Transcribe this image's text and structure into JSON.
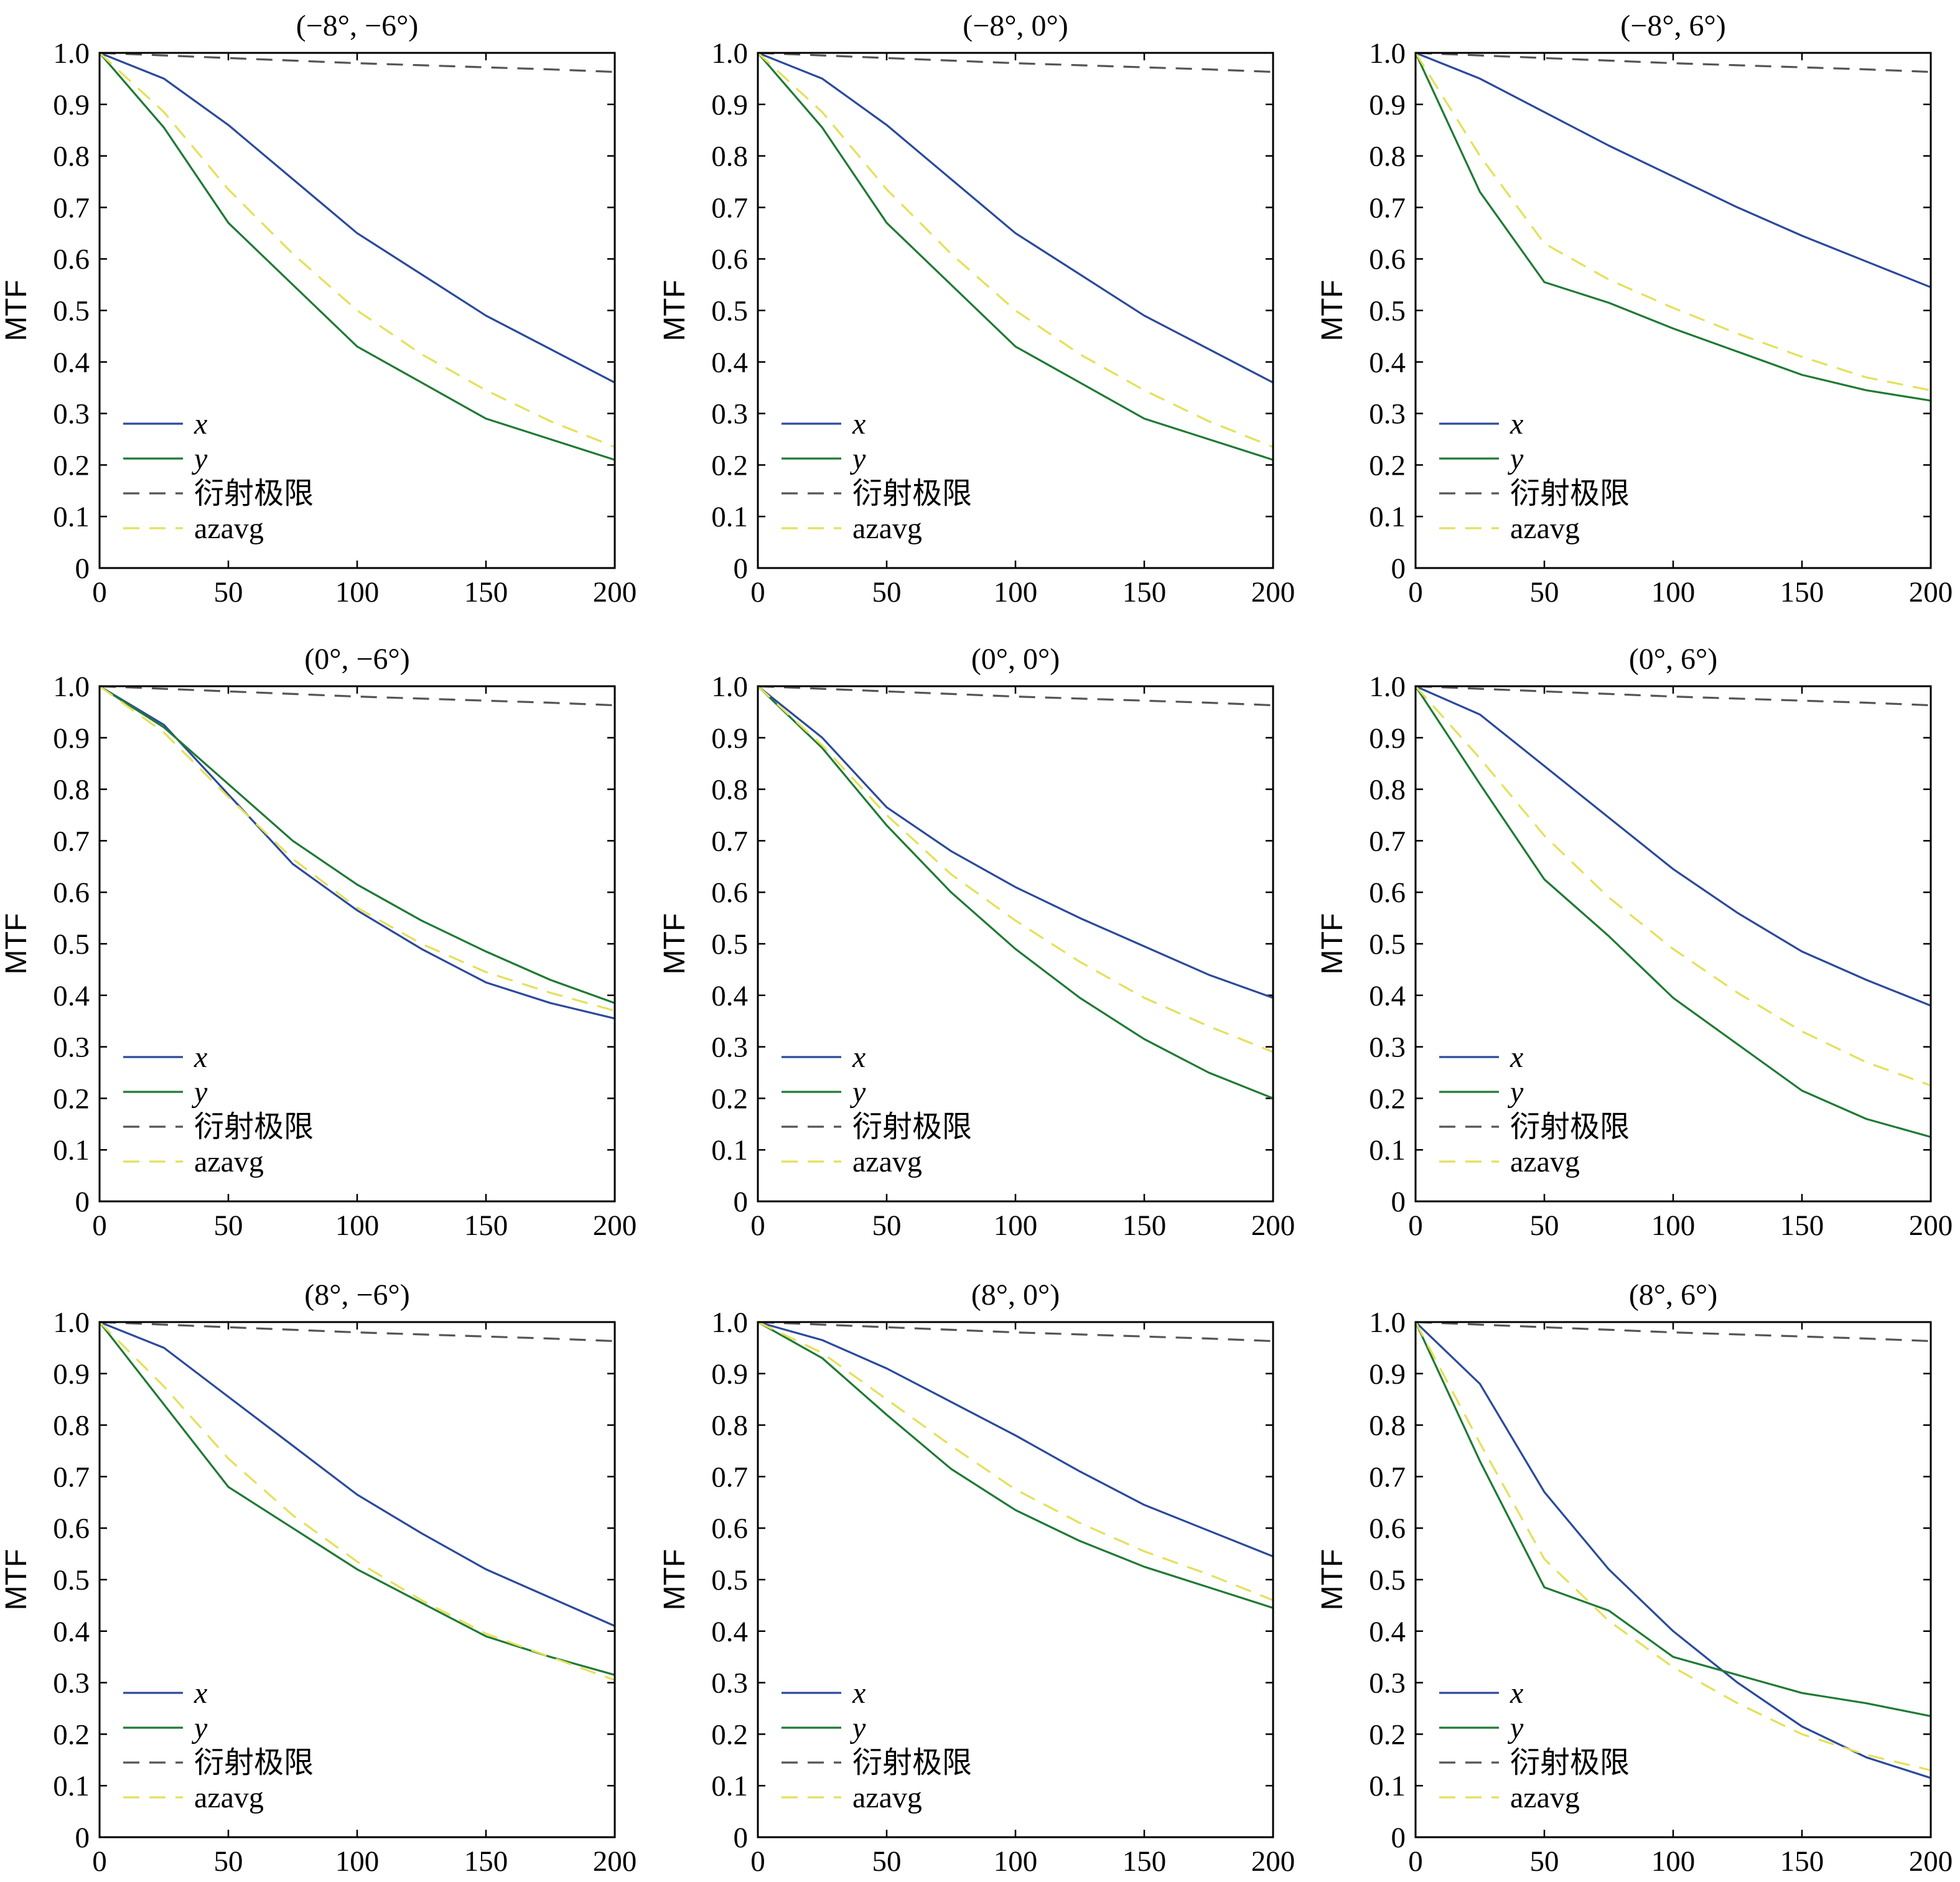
{
  "chart_data": [
    {
      "type": "line",
      "title": "(−8°, −6°)",
      "xlabel": "",
      "ylabel": "MTF",
      "xlim": [
        0,
        200
      ],
      "ylim": [
        0,
        1
      ],
      "x": [
        0,
        25,
        50,
        75,
        100,
        125,
        150,
        175,
        200
      ],
      "xticks": [
        "0",
        "50",
        "100",
        "150",
        "200"
      ],
      "yticks": [
        "0",
        "0.1",
        "0.2",
        "0.3",
        "0.4",
        "0.5",
        "0.6",
        "0.7",
        "0.8",
        "0.9",
        "1.0"
      ],
      "legend": {
        "position": "lower-left"
      },
      "series": [
        {
          "name": "x",
          "color": "#2b4a9b",
          "dash": "solid",
          "values": [
            1.0,
            0.95,
            0.86,
            0.755,
            0.65,
            0.57,
            0.49,
            0.425,
            0.36
          ]
        },
        {
          "name": "y",
          "color": "#1f7a34",
          "dash": "solid",
          "values": [
            1.0,
            0.855,
            0.67,
            0.55,
            0.43,
            0.36,
            0.29,
            0.25,
            0.21
          ]
        },
        {
          "name": "衍射极限",
          "color": "#555555",
          "dash": "dashed",
          "values": [
            1.0,
            0.995,
            0.99,
            0.985,
            0.98,
            0.976,
            0.972,
            0.968,
            0.963
          ]
        },
        {
          "name": "azavg",
          "color": "#e4e05a",
          "dash": "dashed",
          "values": [
            1.0,
            0.885,
            0.735,
            0.61,
            0.5,
            0.415,
            0.345,
            0.285,
            0.235
          ]
        }
      ]
    },
    {
      "type": "line",
      "title": "(−8°, 0°)",
      "xlabel": "",
      "ylabel": "MTF",
      "xlim": [
        0,
        200
      ],
      "ylim": [
        0,
        1
      ],
      "x": [
        0,
        25,
        50,
        75,
        100,
        125,
        150,
        175,
        200
      ],
      "xticks": [
        "0",
        "50",
        "100",
        "150",
        "200"
      ],
      "yticks": [
        "0",
        "0.1",
        "0.2",
        "0.3",
        "0.4",
        "0.5",
        "0.6",
        "0.7",
        "0.8",
        "0.9",
        "1.0"
      ],
      "legend": {
        "position": "lower-left"
      },
      "series": [
        {
          "name": "x",
          "color": "#2b4a9b",
          "dash": "solid",
          "values": [
            1.0,
            0.95,
            0.86,
            0.755,
            0.65,
            0.57,
            0.49,
            0.425,
            0.36
          ]
        },
        {
          "name": "y",
          "color": "#1f7a34",
          "dash": "solid",
          "values": [
            1.0,
            0.855,
            0.67,
            0.55,
            0.43,
            0.36,
            0.29,
            0.25,
            0.21
          ]
        },
        {
          "name": "衍射极限",
          "color": "#555555",
          "dash": "dashed",
          "values": [
            1.0,
            0.995,
            0.99,
            0.985,
            0.98,
            0.976,
            0.972,
            0.968,
            0.963
          ]
        },
        {
          "name": "azavg",
          "color": "#e4e05a",
          "dash": "dashed",
          "values": [
            1.0,
            0.885,
            0.735,
            0.61,
            0.5,
            0.415,
            0.345,
            0.285,
            0.235
          ]
        }
      ]
    },
    {
      "type": "line",
      "title": "(−8°, 6°)",
      "xlabel": "",
      "ylabel": "MTF",
      "xlim": [
        0,
        200
      ],
      "ylim": [
        0,
        1
      ],
      "x": [
        0,
        25,
        50,
        75,
        100,
        125,
        150,
        175,
        200
      ],
      "xticks": [
        "0",
        "50",
        "100",
        "150",
        "200"
      ],
      "yticks": [
        "0",
        "0.1",
        "0.2",
        "0.3",
        "0.4",
        "0.5",
        "0.6",
        "0.7",
        "0.8",
        "0.9",
        "1.0"
      ],
      "legend": {
        "position": "lower-left"
      },
      "series": [
        {
          "name": "x",
          "color": "#2b4a9b",
          "dash": "solid",
          "values": [
            1.0,
            0.95,
            0.885,
            0.82,
            0.76,
            0.7,
            0.645,
            0.595,
            0.545
          ]
        },
        {
          "name": "y",
          "color": "#1f7a34",
          "dash": "solid",
          "values": [
            1.0,
            0.73,
            0.555,
            0.515,
            0.465,
            0.42,
            0.375,
            0.345,
            0.325
          ]
        },
        {
          "name": "衍射极限",
          "color": "#555555",
          "dash": "dashed",
          "values": [
            1.0,
            0.995,
            0.99,
            0.985,
            0.98,
            0.976,
            0.972,
            0.968,
            0.963
          ]
        },
        {
          "name": "azavg",
          "color": "#e4e05a",
          "dash": "dashed",
          "values": [
            1.0,
            0.8,
            0.63,
            0.56,
            0.505,
            0.455,
            0.41,
            0.37,
            0.345
          ]
        }
      ]
    },
    {
      "type": "line",
      "title": "(0°, −6°)",
      "xlabel": "",
      "ylabel": "MTF",
      "xlim": [
        0,
        200
      ],
      "ylim": [
        0,
        1
      ],
      "x": [
        0,
        25,
        50,
        75,
        100,
        125,
        150,
        175,
        200
      ],
      "xticks": [
        "0",
        "50",
        "100",
        "150",
        "200"
      ],
      "yticks": [
        "0",
        "0.1",
        "0.2",
        "0.3",
        "0.4",
        "0.5",
        "0.6",
        "0.7",
        "0.8",
        "0.9",
        "1.0"
      ],
      "legend": {
        "position": "lower-left"
      },
      "series": [
        {
          "name": "x",
          "color": "#2b4a9b",
          "dash": "solid",
          "values": [
            1.0,
            0.925,
            0.79,
            0.655,
            0.565,
            0.49,
            0.425,
            0.385,
            0.355
          ]
        },
        {
          "name": "y",
          "color": "#1f7a34",
          "dash": "solid",
          "values": [
            1.0,
            0.92,
            0.81,
            0.7,
            0.615,
            0.545,
            0.485,
            0.43,
            0.385
          ]
        },
        {
          "name": "衍射极限",
          "color": "#555555",
          "dash": "dashed",
          "values": [
            1.0,
            0.995,
            0.99,
            0.985,
            0.98,
            0.976,
            0.972,
            0.968,
            0.963
          ]
        },
        {
          "name": "azavg",
          "color": "#e4e05a",
          "dash": "dashed",
          "values": [
            1.0,
            0.91,
            0.785,
            0.665,
            0.57,
            0.5,
            0.445,
            0.405,
            0.37
          ]
        }
      ]
    },
    {
      "type": "line",
      "title": "(0°, 0°)",
      "xlabel": "",
      "ylabel": "MTF",
      "xlim": [
        0,
        200
      ],
      "ylim": [
        0,
        1
      ],
      "x": [
        0,
        25,
        50,
        75,
        100,
        125,
        150,
        175,
        200
      ],
      "xticks": [
        "0",
        "50",
        "100",
        "150",
        "200"
      ],
      "yticks": [
        "0",
        "0.1",
        "0.2",
        "0.3",
        "0.4",
        "0.5",
        "0.6",
        "0.7",
        "0.8",
        "0.9",
        "1.0"
      ],
      "legend": {
        "position": "lower-left"
      },
      "series": [
        {
          "name": "x",
          "color": "#2b4a9b",
          "dash": "solid",
          "values": [
            1.0,
            0.9,
            0.765,
            0.68,
            0.61,
            0.55,
            0.495,
            0.44,
            0.395
          ]
        },
        {
          "name": "y",
          "color": "#1f7a34",
          "dash": "solid",
          "values": [
            1.0,
            0.88,
            0.73,
            0.6,
            0.49,
            0.395,
            0.315,
            0.25,
            0.2
          ]
        },
        {
          "name": "衍射极限",
          "color": "#555555",
          "dash": "dashed",
          "values": [
            1.0,
            0.995,
            0.99,
            0.985,
            0.98,
            0.976,
            0.972,
            0.968,
            0.963
          ]
        },
        {
          "name": "azavg",
          "color": "#e4e05a",
          "dash": "dashed",
          "values": [
            1.0,
            0.885,
            0.75,
            0.635,
            0.545,
            0.465,
            0.395,
            0.34,
            0.29
          ]
        }
      ]
    },
    {
      "type": "line",
      "title": "(0°, 6°)",
      "xlabel": "",
      "ylabel": "MTF",
      "xlim": [
        0,
        200
      ],
      "ylim": [
        0,
        1
      ],
      "x": [
        0,
        25,
        50,
        75,
        100,
        125,
        150,
        175,
        200
      ],
      "xticks": [
        "0",
        "50",
        "100",
        "150",
        "200"
      ],
      "yticks": [
        "0",
        "0.1",
        "0.2",
        "0.3",
        "0.4",
        "0.5",
        "0.6",
        "0.7",
        "0.8",
        "0.9",
        "1.0"
      ],
      "legend": {
        "position": "lower-left"
      },
      "series": [
        {
          "name": "x",
          "color": "#2b4a9b",
          "dash": "solid",
          "values": [
            1.0,
            0.945,
            0.845,
            0.745,
            0.645,
            0.56,
            0.485,
            0.43,
            0.38
          ]
        },
        {
          "name": "y",
          "color": "#1f7a34",
          "dash": "solid",
          "values": [
            1.0,
            0.81,
            0.625,
            0.515,
            0.395,
            0.305,
            0.215,
            0.16,
            0.125
          ]
        },
        {
          "name": "衍射极限",
          "color": "#555555",
          "dash": "dashed",
          "values": [
            1.0,
            0.995,
            0.99,
            0.985,
            0.98,
            0.976,
            0.972,
            0.968,
            0.963
          ]
        },
        {
          "name": "azavg",
          "color": "#e4e05a",
          "dash": "dashed",
          "values": [
            1.0,
            0.86,
            0.71,
            0.59,
            0.49,
            0.405,
            0.33,
            0.27,
            0.225
          ]
        }
      ]
    },
    {
      "type": "line",
      "title": "(8°, −6°)",
      "xlabel": "",
      "ylabel": "MTF",
      "xlim": [
        0,
        200
      ],
      "ylim": [
        0,
        1
      ],
      "x": [
        0,
        25,
        50,
        75,
        100,
        125,
        150,
        175,
        200
      ],
      "xticks": [
        "0",
        "50",
        "100",
        "150",
        "200"
      ],
      "yticks": [
        "0",
        "0.1",
        "0.2",
        "0.3",
        "0.4",
        "0.5",
        "0.6",
        "0.7",
        "0.8",
        "0.9",
        "1.0"
      ],
      "legend": {
        "position": "lower-left"
      },
      "series": [
        {
          "name": "x",
          "color": "#2b4a9b",
          "dash": "solid",
          "values": [
            1.0,
            0.95,
            0.855,
            0.76,
            0.665,
            0.59,
            0.52,
            0.465,
            0.41
          ]
        },
        {
          "name": "y",
          "color": "#1f7a34",
          "dash": "solid",
          "values": [
            1.0,
            0.84,
            0.68,
            0.6,
            0.52,
            0.455,
            0.39,
            0.35,
            0.315
          ]
        },
        {
          "name": "衍射极限",
          "color": "#555555",
          "dash": "dashed",
          "values": [
            1.0,
            0.995,
            0.99,
            0.985,
            0.98,
            0.976,
            0.972,
            0.968,
            0.963
          ]
        },
        {
          "name": "azavg",
          "color": "#e4e05a",
          "dash": "dashed",
          "values": [
            1.0,
            0.875,
            0.735,
            0.625,
            0.535,
            0.46,
            0.395,
            0.35,
            0.305
          ]
        }
      ]
    },
    {
      "type": "line",
      "title": "(8°, 0°)",
      "xlabel": "",
      "ylabel": "MTF",
      "xlim": [
        0,
        200
      ],
      "ylim": [
        0,
        1
      ],
      "x": [
        0,
        25,
        50,
        75,
        100,
        125,
        150,
        175,
        200
      ],
      "xticks": [
        "0",
        "50",
        "100",
        "150",
        "200"
      ],
      "yticks": [
        "0",
        "0.1",
        "0.2",
        "0.3",
        "0.4",
        "0.5",
        "0.6",
        "0.7",
        "0.8",
        "0.9",
        "1.0"
      ],
      "legend": {
        "position": "lower-left"
      },
      "series": [
        {
          "name": "x",
          "color": "#2b4a9b",
          "dash": "solid",
          "values": [
            1.0,
            0.965,
            0.91,
            0.845,
            0.78,
            0.71,
            0.645,
            0.595,
            0.545
          ]
        },
        {
          "name": "y",
          "color": "#1f7a34",
          "dash": "solid",
          "values": [
            1.0,
            0.93,
            0.82,
            0.715,
            0.635,
            0.575,
            0.525,
            0.485,
            0.445
          ]
        },
        {
          "name": "衍射极限",
          "color": "#555555",
          "dash": "dashed",
          "values": [
            1.0,
            0.995,
            0.99,
            0.985,
            0.98,
            0.976,
            0.972,
            0.968,
            0.963
          ]
        },
        {
          "name": "azavg",
          "color": "#e4e05a",
          "dash": "dashed",
          "values": [
            1.0,
            0.94,
            0.85,
            0.76,
            0.675,
            0.61,
            0.555,
            0.51,
            0.46
          ]
        }
      ]
    },
    {
      "type": "line",
      "title": "(8°, 6°)",
      "xlabel": "",
      "ylabel": "MTF",
      "xlim": [
        0,
        200
      ],
      "ylim": [
        0,
        1
      ],
      "x": [
        0,
        25,
        50,
        75,
        100,
        125,
        150,
        175,
        200
      ],
      "xticks": [
        "0",
        "50",
        "100",
        "150",
        "200"
      ],
      "yticks": [
        "0",
        "0.1",
        "0.2",
        "0.3",
        "0.4",
        "0.5",
        "0.6",
        "0.7",
        "0.8",
        "0.9",
        "1.0"
      ],
      "legend": {
        "position": "lower-left"
      },
      "series": [
        {
          "name": "x",
          "color": "#2b4a9b",
          "dash": "solid",
          "values": [
            1.0,
            0.88,
            0.67,
            0.52,
            0.4,
            0.3,
            0.215,
            0.155,
            0.115
          ]
        },
        {
          "name": "y",
          "color": "#1f7a34",
          "dash": "solid",
          "values": [
            1.0,
            0.73,
            0.485,
            0.44,
            0.35,
            0.315,
            0.28,
            0.26,
            0.235
          ]
        },
        {
          "name": "衍射极限",
          "color": "#555555",
          "dash": "dashed",
          "values": [
            1.0,
            0.995,
            0.99,
            0.985,
            0.98,
            0.976,
            0.972,
            0.968,
            0.963
          ]
        },
        {
          "name": "azavg",
          "color": "#e4e05a",
          "dash": "dashed",
          "values": [
            1.0,
            0.765,
            0.54,
            0.42,
            0.33,
            0.26,
            0.2,
            0.16,
            0.13
          ]
        }
      ]
    }
  ]
}
